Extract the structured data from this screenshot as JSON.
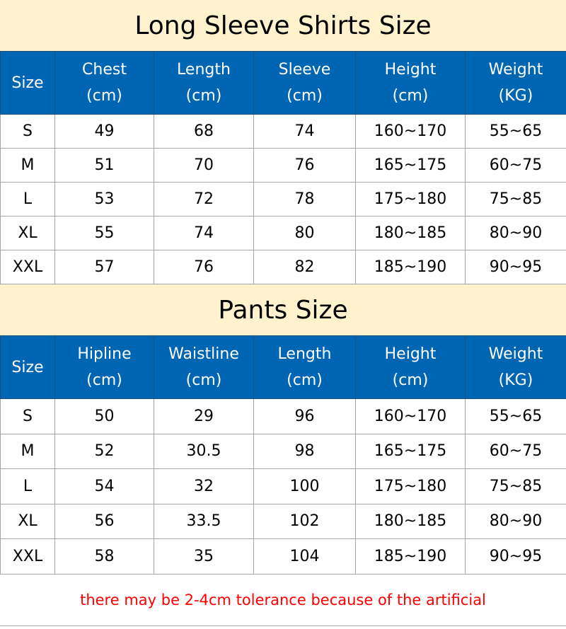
{
  "shirts": {
    "title": "Long Sleeve Shirts Size",
    "headers": [
      [
        "Size",
        ""
      ],
      [
        "Chest",
        "(cm)"
      ],
      [
        "Length",
        "(cm)"
      ],
      [
        "Sleeve",
        "(cm)"
      ],
      [
        "Height",
        "(cm)"
      ],
      [
        "Weight",
        "(KG)"
      ]
    ],
    "rows": [
      [
        "S",
        "49",
        "68",
        "74",
        "160~170",
        "55~65"
      ],
      [
        "M",
        "51",
        "70",
        "76",
        "165~175",
        "60~75"
      ],
      [
        "L",
        "53",
        "72",
        "78",
        "175~180",
        "75~85"
      ],
      [
        "XL",
        "55",
        "74",
        "80",
        "180~185",
        "80~90"
      ],
      [
        "XXL",
        "57",
        "76",
        "82",
        "185~190",
        "90~95"
      ]
    ]
  },
  "pants": {
    "title": "Pants Size",
    "headers": [
      [
        "Size",
        ""
      ],
      [
        "Hipline",
        "(cm)"
      ],
      [
        "Waistline",
        "(cm)"
      ],
      [
        "Length",
        "(cm)"
      ],
      [
        "Height",
        "(cm)"
      ],
      [
        "Weight",
        "(KG)"
      ]
    ],
    "rows": [
      [
        "S",
        "50",
        "29",
        "96",
        "160~170",
        "55~65"
      ],
      [
        "M",
        "52",
        "30.5",
        "98",
        "165~175",
        "60~75"
      ],
      [
        "L",
        "54",
        "32",
        "100",
        "175~180",
        "75~85"
      ],
      [
        "XL",
        "56",
        "33.5",
        "102",
        "180~185",
        "80~90"
      ],
      [
        "XXL",
        "58",
        "35",
        "104",
        "185~190",
        "90~95"
      ]
    ]
  },
  "footer_note": "there may be 2-4cm tolerance because of the artificial",
  "colors": {
    "title_bg": "#fff2cc",
    "header_bg": "#0066b3",
    "note": "#ff0000"
  }
}
